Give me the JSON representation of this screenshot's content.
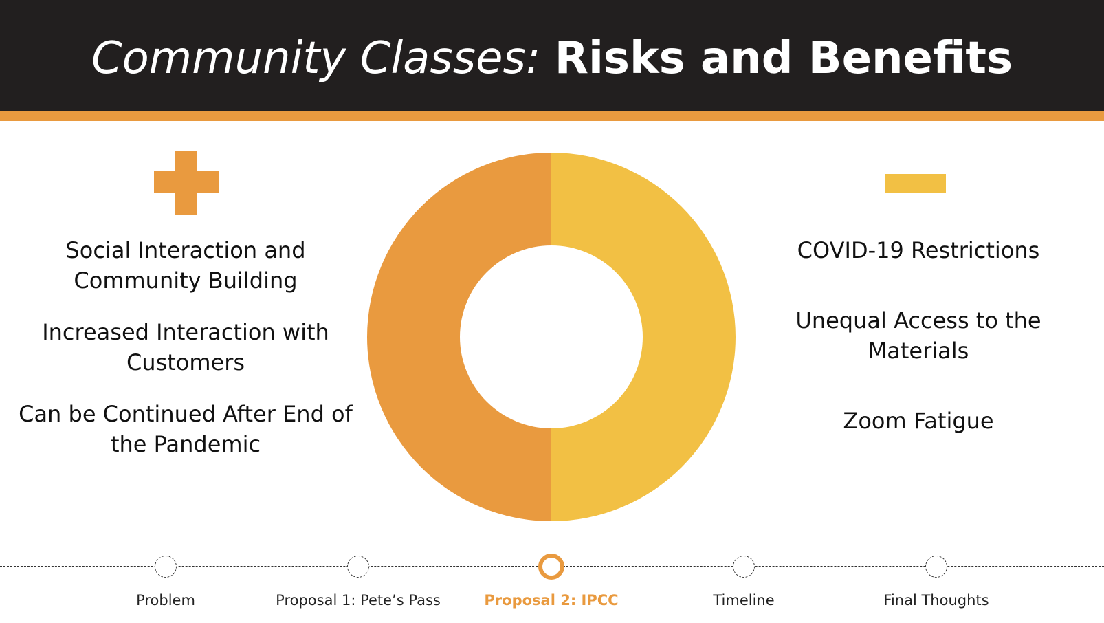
{
  "header": {
    "title_light": "Community Classes:",
    "title_bold": "Risks and Benefits"
  },
  "benefits": {
    "icon": "plus-icon",
    "items": [
      "Social Interaction and Community Building",
      "Increased Interaction with Customers",
      "Can be Continued After End of the Pandemic"
    ]
  },
  "risks": {
    "icon": "minus-icon",
    "items": [
      "COVID-19 Restrictions",
      "Unequal Access to the Materials",
      "Zoom Fatigue"
    ]
  },
  "donut": {
    "segments": [
      {
        "fraction": 0.5,
        "color": "#f2c044"
      },
      {
        "fraction": 0.5,
        "color": "#e99a3f"
      }
    ]
  },
  "nav": {
    "items": [
      {
        "label": "Problem",
        "active": false
      },
      {
        "label": "Proposal 1: Pete’s Pass",
        "active": false
      },
      {
        "label": "Proposal 2: IPCC",
        "active": true
      },
      {
        "label": "Timeline",
        "active": false
      },
      {
        "label": "Final Thoughts",
        "active": false
      }
    ]
  },
  "colors": {
    "header_bg": "#221f1f",
    "accent_orange": "#e99a3f",
    "accent_yellow": "#f2c044"
  }
}
